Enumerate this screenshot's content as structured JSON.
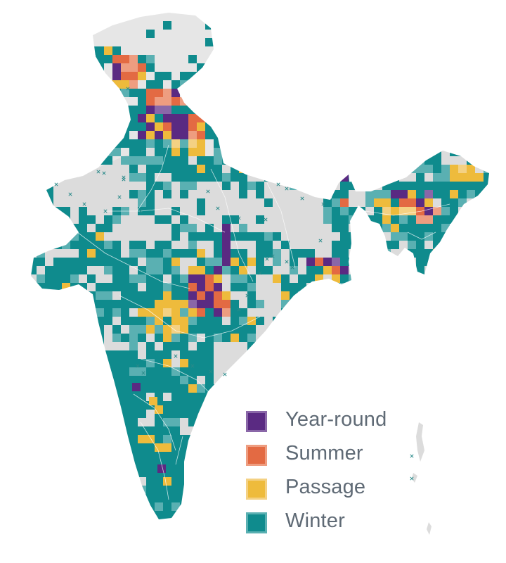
{
  "map": {
    "base_color": "#dcdcdc",
    "upper_land_color": "#e6e6e6",
    "boundary_color": "#ffffff",
    "marker_color": "#2a8a8a"
  },
  "legend": {
    "items": [
      {
        "label": "Year-round",
        "fill": "#5a2a82",
        "border": "#8a67a8"
      },
      {
        "label": "Summer",
        "fill": "#e36a43",
        "border": "#ee9d80"
      },
      {
        "label": "Passage",
        "fill": "#eebb3c",
        "border": "#f4d183"
      },
      {
        "label": "Winter",
        "fill": "#0f8b8d",
        "border": "#5ab0b2"
      }
    ]
  }
}
